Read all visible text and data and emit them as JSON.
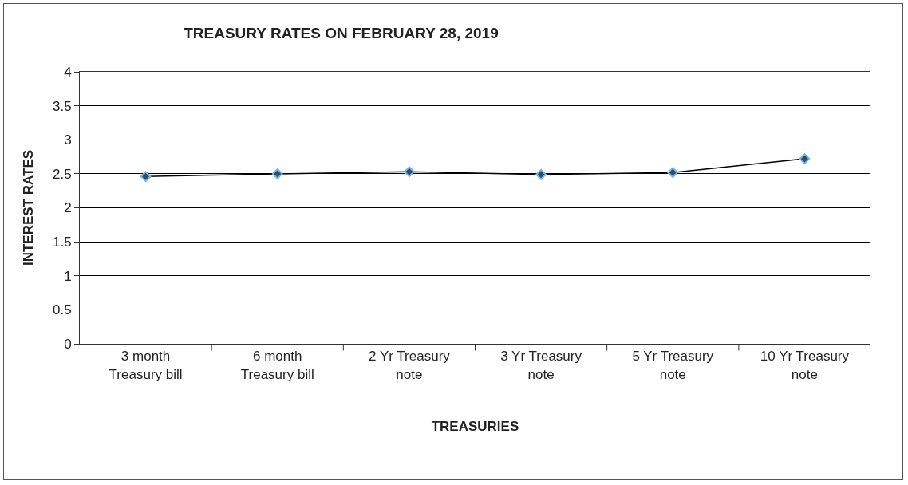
{
  "chart_data": {
    "type": "line",
    "title": "TREASURY RATES ON FEBRUARY 28, 2019",
    "xlabel": "TREASURIES",
    "ylabel": "INTEREST RATES",
    "categories": [
      "3 month Treasury bill",
      "6 month Treasury bill",
      "2 Yr Treasury note",
      "3 Yr Treasury note",
      "5 Yr Treasury note",
      "10 Yr Treasury note"
    ],
    "series": [
      {
        "color": "#000000",
        "values": [
          2.46,
          2.5,
          2.53,
          2.49,
          2.52,
          2.72
        ]
      }
    ],
    "ylim": [
      0,
      4
    ],
    "yticks": [
      0,
      0.5,
      1,
      1.5,
      2,
      2.5,
      3,
      3.5,
      4
    ],
    "grid": "y",
    "marker": "diamond",
    "line_style": "solid"
  }
}
